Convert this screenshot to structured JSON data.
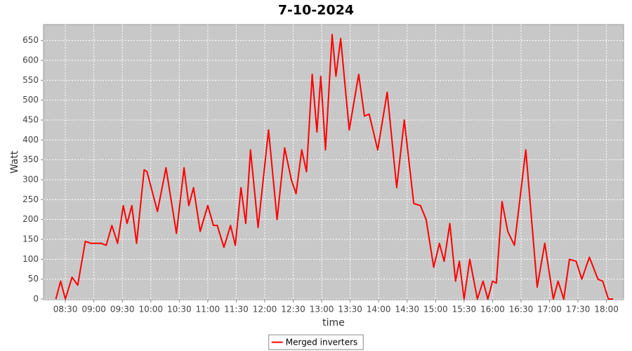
{
  "chart_data": {
    "type": "line",
    "title": "7-10-2024",
    "x_label": "time",
    "y_label": "Watt",
    "grid": true,
    "legend": "bottom",
    "xlim": [
      "08:07",
      "18:18"
    ],
    "xticks": [
      "08:30",
      "09:00",
      "09:30",
      "10:00",
      "10:30",
      "11:00",
      "11:30",
      "12:00",
      "12:30",
      "13:00",
      "13:30",
      "14:00",
      "14:30",
      "15:00",
      "15:30",
      "16:00",
      "16:30",
      "17:00",
      "17:30",
      "18:00"
    ],
    "ylim": [
      0,
      690
    ],
    "yticks": [
      0,
      50,
      100,
      150,
      200,
      250,
      300,
      350,
      400,
      450,
      500,
      550,
      600,
      650
    ],
    "x": [
      "08:20",
      "08:25",
      "08:30",
      "08:37",
      "08:43",
      "08:51",
      "08:57",
      "09:08",
      "09:13",
      "09:19",
      "09:25",
      "09:31",
      "09:35",
      "09:40",
      "09:45",
      "09:53",
      "09:56",
      "10:07",
      "10:16",
      "10:27",
      "10:35",
      "10:40",
      "10:45",
      "10:52",
      "11:00",
      "11:06",
      "11:10",
      "11:17",
      "11:24",
      "11:29",
      "11:35",
      "11:40",
      "11:45",
      "11:53",
      "12:04",
      "12:13",
      "12:21",
      "12:28",
      "12:33",
      "12:39",
      "12:44",
      "12:50",
      "12:55",
      "12:59",
      "13:04",
      "13:11",
      "13:15",
      "13:20",
      "13:29",
      "13:39",
      "13:45",
      "13:50",
      "13:59",
      "14:09",
      "14:19",
      "14:27",
      "14:37",
      "14:44",
      "14:50",
      "14:58",
      "15:04",
      "15:09",
      "15:15",
      "15:21",
      "15:25",
      "15:30",
      "15:36",
      "15:44",
      "15:50",
      "15:55",
      "16:00",
      "16:04",
      "16:10",
      "16:16",
      "16:23",
      "16:35",
      "16:47",
      "16:55",
      "17:04",
      "17:09",
      "17:15",
      "17:21",
      "17:28",
      "17:34",
      "17:42",
      "17:51",
      "17:56",
      "18:02",
      "18:07"
    ],
    "series": [
      {
        "name": "Merged inverters",
        "color": "#ff0000",
        "values": [
          0,
          45,
          0,
          55,
          35,
          145,
          140,
          140,
          135,
          185,
          140,
          235,
          190,
          235,
          140,
          325,
          320,
          220,
          330,
          165,
          330,
          235,
          280,
          170,
          235,
          185,
          185,
          130,
          185,
          135,
          280,
          190,
          375,
          180,
          425,
          200,
          380,
          300,
          265,
          375,
          320,
          565,
          420,
          560,
          375,
          665,
          560,
          655,
          425,
          565,
          460,
          465,
          375,
          520,
          280,
          450,
          240,
          235,
          200,
          80,
          140,
          95,
          190,
          45,
          95,
          0,
          100,
          0,
          45,
          0,
          45,
          40,
          245,
          170,
          135,
          375,
          30,
          140,
          0,
          45,
          0,
          100,
          95,
          50,
          105,
          50,
          45,
          0,
          0
        ]
      }
    ]
  }
}
